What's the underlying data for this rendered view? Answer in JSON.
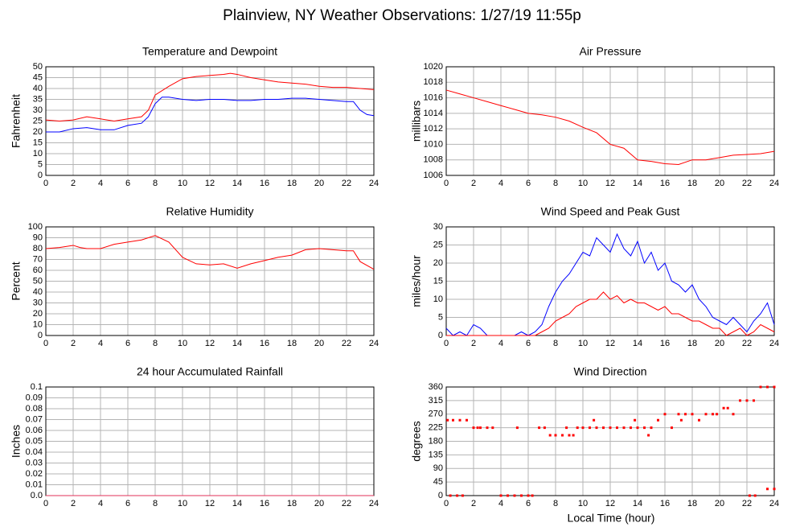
{
  "title": "Plainview, NY Weather Observations: 1/27/19 11:55p",
  "xlabel": "Local Time (hour)",
  "chart_data": [
    {
      "type": "line",
      "title": "Temperature and Dewpoint",
      "ylabel": "Fahrenheit",
      "xlim": [
        0,
        24
      ],
      "xticks": [
        0,
        2,
        4,
        6,
        8,
        10,
        12,
        14,
        16,
        18,
        20,
        22,
        24
      ],
      "ylim": [
        0,
        50
      ],
      "yticks": [
        0,
        5,
        10,
        15,
        20,
        25,
        30,
        35,
        40,
        45,
        50
      ],
      "grid": true,
      "series": [
        {
          "color": "#ff0000",
          "x": [
            0,
            1,
            2,
            3,
            4,
            5,
            6,
            7,
            7.5,
            8,
            9,
            10,
            11,
            12,
            13,
            13.5,
            14,
            15,
            16,
            17,
            18,
            19,
            20,
            21,
            22,
            23,
            24
          ],
          "values": [
            25.5,
            25,
            25.5,
            27,
            26,
            25,
            26,
            27,
            30,
            37,
            41,
            44.5,
            45.5,
            46,
            46.5,
            47,
            46.5,
            45,
            44,
            43,
            42.5,
            42,
            41,
            40.5,
            40.5,
            40,
            39.5
          ]
        },
        {
          "color": "#0000ff",
          "x": [
            0,
            1,
            2,
            3,
            4,
            5,
            6,
            7,
            7.5,
            8,
            8.5,
            9,
            10,
            11,
            12,
            13,
            14,
            15,
            16,
            17,
            18,
            19,
            20,
            21,
            22,
            22.5,
            23,
            23.5,
            24
          ],
          "values": [
            20,
            20,
            21.5,
            22,
            21,
            21,
            23,
            24,
            27,
            33,
            36,
            36,
            35,
            34.5,
            35,
            35,
            34.5,
            34.5,
            35,
            35,
            35.5,
            35.5,
            35,
            34.5,
            34,
            34,
            30,
            28,
            27.5
          ]
        }
      ]
    },
    {
      "type": "line",
      "title": "Air Pressure",
      "ylabel": "millibars",
      "xlim": [
        0,
        24
      ],
      "xticks": [
        0,
        2,
        4,
        6,
        8,
        10,
        12,
        14,
        16,
        18,
        20,
        22,
        24
      ],
      "ylim": [
        1006,
        1020
      ],
      "yticks": [
        1006,
        1008,
        1010,
        1012,
        1014,
        1016,
        1018,
        1020
      ],
      "grid": true,
      "series": [
        {
          "color": "#ff0000",
          "x": [
            0,
            1,
            2,
            3,
            4,
            5,
            6,
            7,
            8,
            9,
            10,
            11,
            12,
            13,
            14,
            15,
            16,
            17,
            18,
            19,
            20,
            21,
            22,
            23,
            24
          ],
          "values": [
            1017,
            1016.5,
            1016,
            1015.5,
            1015,
            1014.5,
            1014,
            1013.8,
            1013.5,
            1013,
            1012.2,
            1011.5,
            1010,
            1009.5,
            1008,
            1007.8,
            1007.5,
            1007.4,
            1008,
            1008,
            1008.3,
            1008.6,
            1008.7,
            1008.8,
            1009.1
          ]
        }
      ]
    },
    {
      "type": "line",
      "title": "Relative Humidity",
      "ylabel": "Percent",
      "xlim": [
        0,
        24
      ],
      "xticks": [
        0,
        2,
        4,
        6,
        8,
        10,
        12,
        14,
        16,
        18,
        20,
        22,
        24
      ],
      "ylim": [
        0,
        100
      ],
      "yticks": [
        0,
        10,
        20,
        30,
        40,
        50,
        60,
        70,
        80,
        90,
        100
      ],
      "grid": true,
      "series": [
        {
          "color": "#ff0000",
          "x": [
            0,
            1,
            2,
            2.5,
            3,
            4,
            5,
            6,
            7,
            8,
            9,
            10,
            11,
            12,
            13,
            14,
            15,
            16,
            17,
            18,
            19,
            20,
            21,
            22,
            22.5,
            23,
            24
          ],
          "values": [
            80,
            81,
            83,
            81,
            80,
            80,
            84,
            86,
            88,
            92,
            86,
            72,
            66,
            65,
            66,
            62,
            66,
            69,
            72,
            74,
            79,
            80,
            79,
            78,
            78,
            68,
            61
          ]
        }
      ]
    },
    {
      "type": "line",
      "title": "Wind Speed and Peak Gust",
      "ylabel": "miles/hour",
      "xlim": [
        0,
        24
      ],
      "xticks": [
        0,
        2,
        4,
        6,
        8,
        10,
        12,
        14,
        16,
        18,
        20,
        22,
        24
      ],
      "ylim": [
        0,
        30
      ],
      "yticks": [
        0,
        5,
        10,
        15,
        20,
        25,
        30
      ],
      "grid": true,
      "series": [
        {
          "color": "#0000ff",
          "x": [
            0,
            0.5,
            1,
            1.5,
            2,
            2.5,
            3,
            3.5,
            4,
            4.5,
            5,
            5.5,
            6,
            6.5,
            7,
            7.5,
            8,
            8.5,
            9,
            9.5,
            10,
            10.5,
            11,
            11.5,
            12,
            12.5,
            13,
            13.5,
            14,
            14.5,
            15,
            15.5,
            16,
            16.5,
            17,
            17.5,
            18,
            18.5,
            19,
            19.5,
            20,
            20.5,
            21,
            21.5,
            22,
            22.5,
            23,
            23.5,
            24
          ],
          "values": [
            2,
            0,
            1,
            0,
            3,
            2,
            0,
            0,
            0,
            0,
            0,
            1,
            0,
            1,
            3,
            8,
            12,
            15,
            17,
            20,
            23,
            22,
            27,
            25,
            23,
            28,
            24,
            22,
            26,
            20,
            23,
            18,
            20,
            15,
            14,
            12,
            14,
            10,
            8,
            5,
            4,
            3,
            5,
            3,
            1,
            4,
            6,
            9,
            3
          ]
        },
        {
          "color": "#ff0000",
          "x": [
            0,
            0.5,
            1,
            1.5,
            2,
            2.5,
            3,
            3.5,
            4,
            4.5,
            5,
            5.5,
            6,
            6.5,
            7,
            7.5,
            8,
            8.5,
            9,
            9.5,
            10,
            10.5,
            11,
            11.5,
            12,
            12.5,
            13,
            13.5,
            14,
            14.5,
            15,
            15.5,
            16,
            16.5,
            17,
            17.5,
            18,
            18.5,
            19,
            19.5,
            20,
            20.5,
            21,
            21.5,
            22,
            22.5,
            23,
            23.5,
            24
          ],
          "values": [
            0,
            0,
            0,
            0,
            0,
            0,
            0,
            0,
            0,
            0,
            0,
            0,
            0,
            0,
            1,
            2,
            4,
            5,
            6,
            8,
            9,
            10,
            10,
            12,
            10,
            11,
            9,
            10,
            9,
            9,
            8,
            7,
            8,
            6,
            6,
            5,
            4,
            4,
            3,
            2,
            2,
            0,
            1,
            2,
            0,
            1,
            3,
            2,
            1
          ]
        }
      ]
    },
    {
      "type": "line",
      "title": "24 hour Accumulated Rainfall",
      "ylabel": "Inches",
      "xlim": [
        0,
        24
      ],
      "xticks": [
        0,
        2,
        4,
        6,
        8,
        10,
        12,
        14,
        16,
        18,
        20,
        22,
        24
      ],
      "ylim": [
        0,
        0.1
      ],
      "yticks": [
        {
          "value": 0,
          "label": "0.0"
        },
        0.01,
        0.02,
        0.03,
        0.04,
        0.05,
        0.06,
        0.07,
        0.08,
        0.09,
        0.1
      ],
      "grid": true,
      "series": [
        {
          "color": "#e0305a",
          "x": [
            0,
            24
          ],
          "values": [
            0,
            0
          ]
        }
      ]
    },
    {
      "type": "scatter",
      "title": "Wind Direction",
      "ylabel": "degrees",
      "xlim": [
        0,
        24
      ],
      "xticks": [
        0,
        2,
        4,
        6,
        8,
        10,
        12,
        14,
        16,
        18,
        20,
        22,
        24
      ],
      "ylim": [
        0,
        360
      ],
      "yticks": [
        0,
        45,
        90,
        135,
        180,
        225,
        270,
        315,
        360
      ],
      "grid": true,
      "series": [
        {
          "color": "#ff0000",
          "x": [
            0.1,
            0.5,
            1,
            1.5,
            0.3,
            0.8,
            1.2,
            2,
            2.5,
            3,
            3.4,
            2.3,
            4,
            4.5,
            5,
            5.5,
            6,
            6.3,
            5.2,
            6.8,
            7.2,
            7.6,
            8,
            8.5,
            9,
            9.3,
            8.8,
            9.6,
            10,
            10.5,
            11,
            11.5,
            10.8,
            12,
            12.5,
            13,
            13.5,
            13.8,
            14,
            14.5,
            15,
            15.5,
            16,
            16.5,
            17,
            17.5,
            18,
            18.5,
            19,
            19.5,
            19.8,
            20.3,
            20.6,
            21,
            21.5,
            22,
            22.5,
            23,
            23.5,
            24,
            22.2,
            22.6,
            23.5,
            24,
            17.2,
            14.8
          ],
          "values": [
            250,
            250,
            250,
            250,
            0,
            0,
            0,
            225,
            225,
            225,
            225,
            225,
            0,
            0,
            0,
            0,
            0,
            0,
            225,
            225,
            225,
            200,
            200,
            200,
            200,
            200,
            225,
            225,
            225,
            225,
            225,
            225,
            250,
            225,
            225,
            225,
            225,
            250,
            225,
            225,
            225,
            250,
            270,
            225,
            270,
            270,
            270,
            250,
            270,
            270,
            270,
            290,
            290,
            270,
            315,
            315,
            315,
            360,
            360,
            360,
            0,
            0,
            22,
            22,
            250,
            200
          ]
        }
      ]
    }
  ]
}
